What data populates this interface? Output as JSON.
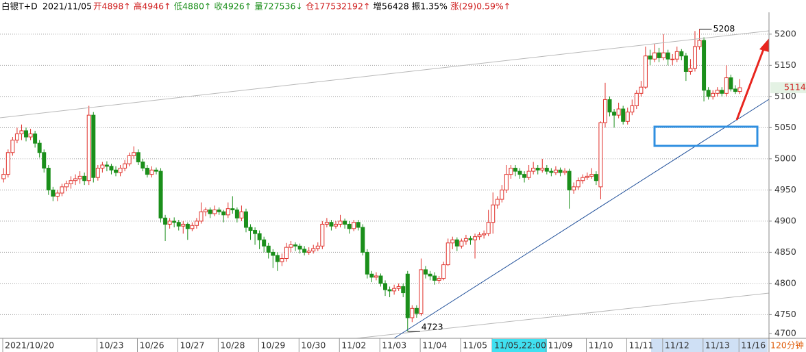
{
  "header": {
    "name": "白银T+D",
    "date": "2021/11/05",
    "open": "开4898↑",
    "high": "高4946↑",
    "low": "低4880↑",
    "close": "收4926↑",
    "volume": "量727536↓",
    "position": "仓177532192↑",
    "increase": "增56428",
    "amplitude": "振1.35%",
    "change": "涨(29)0.59%↑"
  },
  "chart_data": {
    "type": "candlestick",
    "up_color": "#e0302a",
    "down_color": "#1b8f1b",
    "grid": true,
    "ylim": [
      4712,
      5235
    ],
    "yticks": [
      4700,
      4750,
      4800,
      4850,
      4900,
      4950,
      5000,
      5050,
      5100,
      5150,
      5200
    ],
    "period": "120分钟",
    "last": 5114,
    "high_label": 5208,
    "low_label": 4723,
    "categories": [
      "2021/10/20",
      null,
      null,
      null,
      null,
      null,
      null,
      null,
      null,
      null,
      null,
      null,
      null,
      null,
      null,
      null,
      null,
      null,
      null,
      null,
      null,
      "10/23",
      null,
      null,
      null,
      null,
      null,
      null,
      null,
      null,
      "10/26",
      null,
      null,
      null,
      null,
      null,
      null,
      null,
      null,
      "10/27",
      null,
      null,
      null,
      null,
      null,
      null,
      null,
      null,
      "10/28",
      null,
      null,
      null,
      null,
      null,
      null,
      null,
      null,
      "10/29",
      null,
      null,
      null,
      null,
      null,
      null,
      null,
      null,
      "10/30",
      null,
      null,
      null,
      null,
      null,
      null,
      null,
      null,
      "11/02",
      null,
      null,
      null,
      null,
      null,
      null,
      null,
      null,
      "11/03",
      null,
      null,
      null,
      null,
      null,
      null,
      null,
      null,
      "11/04",
      null,
      null,
      null,
      null,
      null,
      null,
      null,
      null,
      "11/05",
      null,
      null,
      null,
      null,
      null,
      null,
      "11/05,22:00",
      null,
      null,
      null,
      null,
      null,
      null,
      null,
      null,
      null,
      null,
      null,
      "11/09",
      null,
      null,
      null,
      null,
      null,
      null,
      null,
      null,
      "11/10",
      null,
      null,
      null,
      null,
      null,
      null,
      null,
      null,
      "11/11",
      null,
      null,
      null,
      null,
      null,
      null,
      null,
      "11/12",
      null,
      null,
      null,
      null,
      null,
      null,
      null,
      null,
      "11/13",
      null,
      null,
      null,
      null,
      null,
      null,
      null,
      "11/16"
    ],
    "ohlc": [
      [
        4968,
        4985,
        4962,
        4975
      ],
      [
        4975,
        5015,
        4970,
        5010
      ],
      [
        5010,
        5035,
        5005,
        5030
      ],
      [
        5030,
        5050,
        5025,
        5040
      ],
      [
        5040,
        5055,
        5030,
        5045
      ],
      [
        5045,
        5050,
        5028,
        5035
      ],
      [
        5035,
        5048,
        5030,
        5040
      ],
      [
        5040,
        5045,
        5018,
        5025
      ],
      [
        5025,
        5030,
        5002,
        5010
      ],
      [
        5010,
        5015,
        4978,
        4985
      ],
      [
        4985,
        4990,
        4942,
        4950
      ],
      [
        4950,
        4955,
        4932,
        4940
      ],
      [
        4940,
        4950,
        4932,
        4945
      ],
      [
        4945,
        4960,
        4940,
        4955
      ],
      [
        4955,
        4965,
        4948,
        4960
      ],
      [
        4960,
        4972,
        4952,
        4965
      ],
      [
        4965,
        4975,
        4958,
        4968
      ],
      [
        4968,
        4980,
        4960,
        4972
      ],
      [
        4972,
        4978,
        4958,
        4965
      ],
      [
        4965,
        5085,
        4958,
        5070
      ],
      [
        5070,
        5075,
        4962,
        4970
      ],
      [
        4970,
        4990,
        4965,
        4985
      ],
      [
        4985,
        4995,
        4978,
        4990
      ],
      [
        4990,
        4996,
        4980,
        4988
      ],
      [
        4988,
        4992,
        4975,
        4982
      ],
      [
        4982,
        4988,
        4972,
        4978
      ],
      [
        4978,
        4990,
        4972,
        4985
      ],
      [
        4985,
        4998,
        4980,
        4992
      ],
      [
        4992,
        5010,
        4988,
        5005
      ],
      [
        5005,
        5020,
        5000,
        5010
      ],
      [
        5010,
        5015,
        4990,
        4995
      ],
      [
        4995,
        5000,
        4980,
        4985
      ],
      [
        4985,
        4990,
        4970,
        4975
      ],
      [
        4975,
        4988,
        4970,
        4982
      ],
      [
        4982,
        4986,
        4975,
        4980
      ],
      [
        4980,
        4985,
        4898,
        4905
      ],
      [
        4905,
        4910,
        4868,
        4895
      ],
      [
        4895,
        4905,
        4888,
        4900
      ],
      [
        4900,
        4906,
        4890,
        4898
      ],
      [
        4898,
        4902,
        4885,
        4892
      ],
      [
        4892,
        4900,
        4880,
        4895
      ],
      [
        4895,
        4898,
        4870,
        4888
      ],
      [
        4888,
        4898,
        4884,
        4893
      ],
      [
        4893,
        4905,
        4888,
        4900
      ],
      [
        4900,
        4930,
        4896,
        4915
      ],
      [
        4915,
        4922,
        4908,
        4918
      ],
      [
        4918,
        4922,
        4905,
        4912
      ],
      [
        4912,
        4925,
        4908,
        4918
      ],
      [
        4918,
        4922,
        4910,
        4915
      ],
      [
        4915,
        4918,
        4898,
        4910
      ],
      [
        4910,
        4930,
        4905,
        4920
      ],
      [
        4920,
        4940,
        4912,
        4918
      ],
      [
        4918,
        4922,
        4898,
        4905
      ],
      [
        4905,
        4925,
        4900,
        4915
      ],
      [
        4915,
        4920,
        4882,
        4890
      ],
      [
        4890,
        4895,
        4870,
        4885
      ],
      [
        4885,
        4890,
        4862,
        4880
      ],
      [
        4880,
        4885,
        4855,
        4870
      ],
      [
        4870,
        4875,
        4850,
        4860
      ],
      [
        4860,
        4865,
        4840,
        4850
      ],
      [
        4850,
        4855,
        4825,
        4845
      ],
      [
        4845,
        4850,
        4820,
        4835
      ],
      [
        4835,
        4848,
        4828,
        4840
      ],
      [
        4840,
        4865,
        4835,
        4858
      ],
      [
        4858,
        4868,
        4850,
        4862
      ],
      [
        4862,
        4866,
        4852,
        4860
      ],
      [
        4860,
        4864,
        4848,
        4855
      ],
      [
        4855,
        4860,
        4845,
        4850
      ],
      [
        4850,
        4858,
        4846,
        4852
      ],
      [
        4852,
        4862,
        4848,
        4856
      ],
      [
        4856,
        4866,
        4852,
        4860
      ],
      [
        4860,
        4900,
        4855,
        4895
      ],
      [
        4895,
        4905,
        4890,
        4898
      ],
      [
        4898,
        4902,
        4885,
        4892
      ],
      [
        4892,
        4900,
        4888,
        4895
      ],
      [
        4895,
        4910,
        4890,
        4900
      ],
      [
        4900,
        4904,
        4888,
        4895
      ],
      [
        4895,
        4900,
        4880,
        4888
      ],
      [
        4888,
        4902,
        4884,
        4898
      ],
      [
        4898,
        4902,
        4885,
        4890
      ],
      [
        4890,
        4895,
        4845,
        4850
      ],
      [
        4850,
        4855,
        4808,
        4815
      ],
      [
        4815,
        4820,
        4802,
        4810
      ],
      [
        4810,
        4818,
        4805,
        4812
      ],
      [
        4812,
        4816,
        4795,
        4800
      ],
      [
        4800,
        4805,
        4780,
        4790
      ],
      [
        4790,
        4795,
        4778,
        4788
      ],
      [
        4788,
        4798,
        4782,
        4792
      ],
      [
        4792,
        4800,
        4788,
        4795
      ],
      [
        4795,
        4800,
        4778,
        4785
      ],
      [
        4815,
        4820,
        4723,
        4745
      ],
      [
        4745,
        4765,
        4738,
        4760
      ],
      [
        4760,
        4765,
        4745,
        4752
      ],
      [
        4752,
        4840,
        4748,
        4822
      ],
      [
        4822,
        4828,
        4808,
        4815
      ],
      [
        4815,
        4820,
        4805,
        4812
      ],
      [
        4812,
        4818,
        4798,
        4805
      ],
      [
        4805,
        4812,
        4800,
        4808
      ],
      [
        4808,
        4835,
        4805,
        4830
      ],
      [
        4830,
        4872,
        4828,
        4865
      ],
      [
        4865,
        4875,
        4855,
        4870
      ],
      [
        4870,
        4874,
        4852,
        4860
      ],
      [
        4860,
        4872,
        4856,
        4868
      ],
      [
        4868,
        4878,
        4862,
        4872
      ],
      [
        4872,
        4876,
        4862,
        4870
      ],
      [
        4870,
        4880,
        4840,
        4875
      ],
      [
        4875,
        4882,
        4870,
        4878
      ],
      [
        4878,
        4885,
        4872,
        4880
      ],
      [
        4880,
        4918,
        4876,
        4898
      ],
      [
        4898,
        4946,
        4880,
        4926
      ],
      [
        4926,
        4940,
        4920,
        4935
      ],
      [
        4935,
        4958,
        4930,
        4950
      ],
      [
        4950,
        4990,
        4945,
        4975
      ],
      [
        4975,
        4990,
        4968,
        4985
      ],
      [
        4985,
        4990,
        4972,
        4980
      ],
      [
        4980,
        4985,
        4968,
        4975
      ],
      [
        4975,
        4980,
        4962,
        4970
      ],
      [
        4970,
        4990,
        4966,
        4980
      ],
      [
        4980,
        4995,
        4975,
        4985
      ],
      [
        4985,
        4990,
        4975,
        4982
      ],
      [
        4982,
        5000,
        4978,
        4985
      ],
      [
        4985,
        4990,
        4975,
        4980
      ],
      [
        4980,
        4985,
        4972,
        4978
      ],
      [
        4978,
        4988,
        4974,
        4982
      ],
      [
        4982,
        4986,
        4972,
        4978
      ],
      [
        4978,
        4985,
        4974,
        4980
      ],
      [
        4980,
        4984,
        4920,
        4950
      ],
      [
        4950,
        4962,
        4944,
        4955
      ],
      [
        4955,
        4970,
        4950,
        4965
      ],
      [
        4965,
        4975,
        4960,
        4970
      ],
      [
        4970,
        4978,
        4966,
        4972
      ],
      [
        4972,
        4985,
        4968,
        4975
      ],
      [
        4975,
        4980,
        4958,
        4965
      ],
      [
        4955,
        5060,
        4935,
        5058
      ],
      [
        5058,
        5122,
        5050,
        5095
      ],
      [
        5095,
        5100,
        5068,
        5075
      ],
      [
        5075,
        5080,
        5050,
        5070
      ],
      [
        5070,
        5090,
        5065,
        5080
      ],
      [
        5080,
        5085,
        5055,
        5060
      ],
      [
        5060,
        5082,
        5055,
        5075
      ],
      [
        5075,
        5095,
        5070,
        5085
      ],
      [
        5085,
        5110,
        5080,
        5105
      ],
      [
        5105,
        5125,
        5100,
        5115
      ],
      [
        5115,
        5180,
        5112,
        5165
      ],
      [
        5165,
        5175,
        5150,
        5160
      ],
      [
        5160,
        5185,
        5155,
        5170
      ],
      [
        5170,
        5178,
        5155,
        5162
      ],
      [
        5162,
        5200,
        5158,
        5170
      ],
      [
        5170,
        5175,
        5150,
        5160
      ],
      [
        5160,
        5168,
        5150,
        5160
      ],
      [
        5160,
        5180,
        5155,
        5172
      ],
      [
        5172,
        5176,
        5158,
        5165
      ],
      [
        5165,
        5170,
        5125,
        5140
      ],
      [
        5140,
        5160,
        5135,
        5145
      ],
      [
        5145,
        5205,
        5140,
        5180
      ],
      [
        5180,
        5208,
        5175,
        5190
      ],
      [
        5190,
        5195,
        5092,
        5110
      ],
      [
        5110,
        5115,
        5095,
        5100
      ],
      [
        5100,
        5110,
        5095,
        5105
      ],
      [
        5105,
        5115,
        5100,
        5110
      ],
      [
        5110,
        5115,
        5100,
        5105
      ],
      [
        5105,
        5150,
        5100,
        5130
      ],
      [
        5130,
        5135,
        5108,
        5112
      ],
      [
        5112,
        5118,
        5104,
        5108
      ],
      [
        5108,
        5128,
        5104,
        5114
      ]
    ]
  }
}
